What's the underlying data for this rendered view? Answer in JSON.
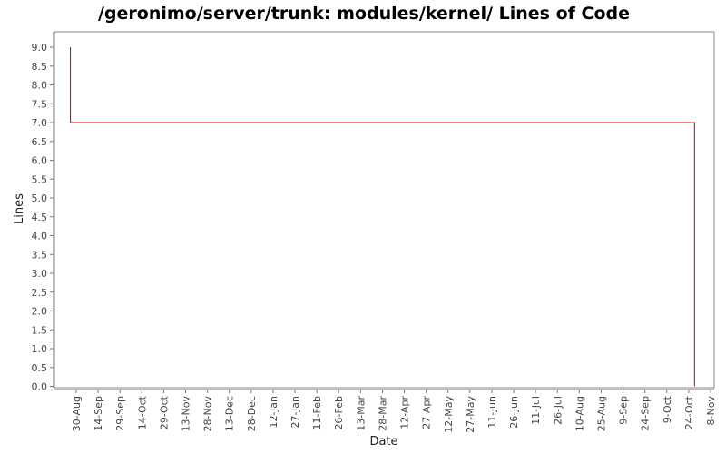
{
  "colors": {
    "series": "#cc0000",
    "plot_border": "#888888",
    "axis": "#777777",
    "background": "#ffffff"
  },
  "chart_data": {
    "type": "line",
    "step": true,
    "title": "/geronimo/server/trunk: modules/kernel/ Lines of Code",
    "xlabel": "Date",
    "ylabel": "Lines",
    "ylim": [
      0,
      9.3
    ],
    "grid": false,
    "legend": "none",
    "y_ticks": [
      "0.0",
      "0.5",
      "1.0",
      "1.5",
      "2.0",
      "2.5",
      "3.0",
      "3.5",
      "4.0",
      "4.5",
      "5.0",
      "5.5",
      "6.0",
      "6.5",
      "7.0",
      "7.5",
      "8.0",
      "8.5",
      "9.0"
    ],
    "x_ticks": [
      "30-Aug",
      "14-Sep",
      "29-Sep",
      "14-Oct",
      "29-Oct",
      "13-Nov",
      "28-Nov",
      "13-Dec",
      "28-Dec",
      "12-Jan",
      "27-Jan",
      "11-Feb",
      "26-Feb",
      "13-Mar",
      "28-Mar",
      "12-Apr",
      "27-Apr",
      "12-May",
      "27-May",
      "11-Jun",
      "26-Jun",
      "11-Jul",
      "26-Jul",
      "10-Aug",
      "25-Aug",
      "9-Sep",
      "24-Sep",
      "9-Oct",
      "24-Oct",
      "8-Nov"
    ],
    "series": [
      {
        "color": "#cc0000",
        "points": [
          {
            "x": "2005-08-26",
            "y": 9
          },
          {
            "x": "2005-08-27",
            "y": 7
          },
          {
            "x": "2006-10-28",
            "y": 7
          },
          {
            "x": "2006-10-28",
            "y": 0
          }
        ]
      }
    ]
  }
}
